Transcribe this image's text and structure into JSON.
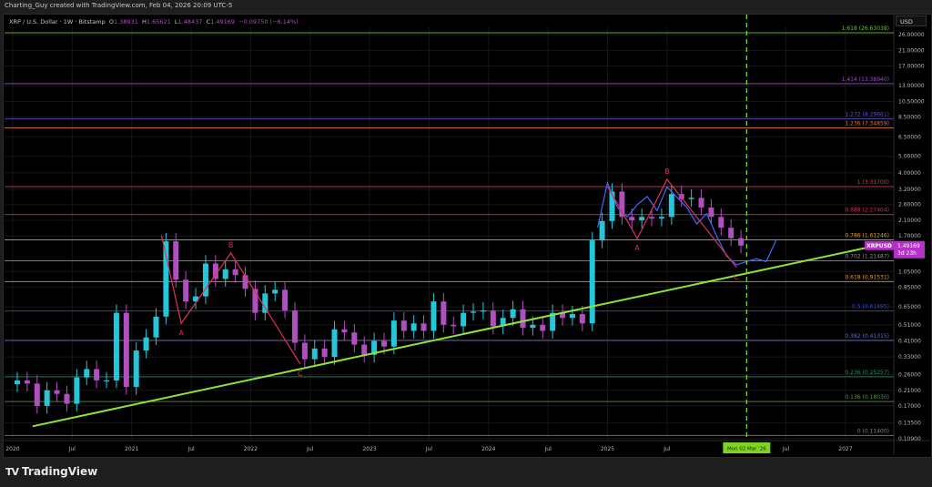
{
  "header": {
    "credit": "Charting_Guy created with TradingView.com, Feb 04, 2026 20:09 UTC-5",
    "symbol": "XRP / U.S. Dollar · 1W · Bitstamp",
    "o_label": "O",
    "o": "1.38931",
    "h_label": "H",
    "h": "1.65621",
    "l_label": "L",
    "l": "1.48437",
    "c_label": "C",
    "c": "1.49169",
    "change": "−0.09750 (−6.14%)"
  },
  "footer": {
    "brand": "TradingView",
    "logo_icon": "tradingview-logo-icon"
  },
  "chart_data": {
    "type": "candlestick",
    "currency": "USD",
    "scale": "log",
    "ylim": [
      0.109,
      26.6
    ],
    "xlim": [
      "2020-01-01",
      "2027-08-01"
    ],
    "y_ticks": [
      "26.00000",
      "21.00000",
      "17.00000",
      "13.00000",
      "10.50000",
      "8.50000",
      "6.50000",
      "5.00000",
      "4.00000",
      "3.20000",
      "2.60000",
      "2.10000",
      "1.70000",
      "1.05000",
      "0.85000",
      "0.65000",
      "0.51000",
      "0.41000",
      "0.33000",
      "0.26000",
      "0.21000",
      "0.17000",
      "0.13500",
      "0.10900"
    ],
    "x_ticks": [
      "2020",
      "Jul",
      "2021",
      "Jul",
      "2022",
      "Jul",
      "2023",
      "Jul",
      "2024",
      "Jul",
      "2025",
      "Jul",
      "Jul",
      "2027"
    ],
    "x_tick_dates": [
      "2020-01",
      "2020-07",
      "2021-01",
      "2021-07",
      "2022-01",
      "2022-07",
      "2023-01",
      "2023-07",
      "2024-01",
      "2024-07",
      "2025-01",
      "2025-07",
      "2026-07",
      "2027-01"
    ],
    "colors": {
      "up": "#26c6da",
      "down": "#b04fc0",
      "trendline": "#8fe33a",
      "abc": "#e0305a",
      "projection": "#3d6bff",
      "marker": "#7fd321"
    },
    "closes_monthly": {
      "start": "2020-01",
      "values": [
        0.24,
        0.23,
        0.17,
        0.21,
        0.2,
        0.175,
        0.25,
        0.28,
        0.24,
        0.24,
        0.6,
        0.22,
        0.36,
        0.43,
        0.57,
        1.58,
        0.94,
        0.7,
        0.75,
        1.17,
        0.95,
        1.08,
        1.0,
        0.83,
        0.6,
        0.78,
        0.82,
        0.62,
        0.4,
        0.32,
        0.37,
        0.33,
        0.48,
        0.46,
        0.39,
        0.34,
        0.41,
        0.38,
        0.54,
        0.47,
        0.52,
        0.47,
        0.7,
        0.51,
        0.5,
        0.6,
        0.61,
        0.62,
        0.5,
        0.56,
        0.63,
        0.49,
        0.51,
        0.47,
        0.6,
        0.56,
        0.59,
        0.52,
        1.6,
        2.08,
        3.1,
        2.2,
        2.1,
        2.2,
        2.15,
        2.2,
        3.0,
        2.8,
        2.85,
        2.5,
        2.2,
        1.9,
        1.65,
        1.49169
      ]
    },
    "fib_levels": [
      {
        "label": "1.618 (26.63038)",
        "price": 26.63038,
        "color": "#6fbf3a"
      },
      {
        "label": "1.414 (13.38940)",
        "price": 13.3894,
        "color": "#9c4fd0"
      },
      {
        "label": "1.272 (8.29661)",
        "price": 8.29661,
        "color": "#5b4fd0"
      },
      {
        "label": "1.236 (7.34859)",
        "price": 7.34859,
        "color": "#e07a30"
      },
      {
        "label": "1 (3.31700)",
        "price": 3.317,
        "color": "#d04050"
      },
      {
        "label": "0.888 (2.27404)",
        "price": 2.27404,
        "color": "#d03060"
      },
      {
        "label": "0.786 (1.61246)",
        "price": 1.61246,
        "color": "#e0a030"
      },
      {
        "label": "0.702 (1.21487)",
        "price": 1.21487,
        "color": "#909090"
      },
      {
        "label": "0.618 (0.91531)",
        "price": 0.91531,
        "color": "#e0a030"
      },
      {
        "label": "0.5 (0.61495)",
        "price": 0.61495,
        "color": "#3050d0"
      },
      {
        "label": "0.382 (0.41315)",
        "price": 0.41315,
        "color": "#6070c0"
      },
      {
        "label": "0.236 (0.25257)",
        "price": 0.25257,
        "color": "#2a9070"
      },
      {
        "label": "0.136 (0.18030)",
        "price": 0.1803,
        "color": "#5a9a40"
      },
      {
        "label": "0 (0.11400)",
        "price": 0.114,
        "color": "#808080"
      }
    ],
    "trendline": [
      [
        "2020-03",
        0.129
      ],
      [
        "2027-05",
        1.53
      ]
    ],
    "abc_patterns": [
      {
        "points": [
          [
            "2021-04",
            1.72
          ],
          [
            "2021-06",
            0.52
          ],
          [
            "2021-11",
            1.35
          ],
          [
            "2022-06",
            0.3
          ]
        ],
        "labels": [
          "A",
          "B",
          "C"
        ]
      },
      {
        "points": [
          [
            "2025-01",
            3.32
          ],
          [
            "2025-04",
            1.64
          ],
          [
            "2025-07",
            3.66
          ],
          [
            "2026-02",
            1.11
          ]
        ],
        "labels": [
          "A",
          "B",
          "C"
        ]
      }
    ],
    "projection": [
      [
        "2024-12",
        1.9
      ],
      [
        "2025-01",
        3.5
      ],
      [
        "2025-02",
        2.5
      ],
      [
        "2025-03",
        2.2
      ],
      [
        "2025-04",
        2.6
      ],
      [
        "2025-05",
        2.9
      ],
      [
        "2025-06",
        2.4
      ],
      [
        "2025-07",
        3.3
      ],
      [
        "2025-09",
        2.5
      ],
      [
        "2025-10",
        2.0
      ],
      [
        "2025-11",
        2.3
      ],
      [
        "2025-12",
        1.7
      ],
      [
        "2026-01",
        1.3
      ],
      [
        "2026-02",
        1.15
      ],
      [
        "2026-03",
        1.2
      ],
      [
        "2026-04",
        1.25
      ],
      [
        "2026-05",
        1.2
      ],
      [
        "2026-06",
        1.6
      ]
    ],
    "vertical_marker": {
      "date": "2026-03-02",
      "label": "Mon 02 Mar '26"
    },
    "last_price": {
      "symbol": "XRPUSD",
      "price": "1.49169",
      "countdown": "3d 23h"
    }
  }
}
